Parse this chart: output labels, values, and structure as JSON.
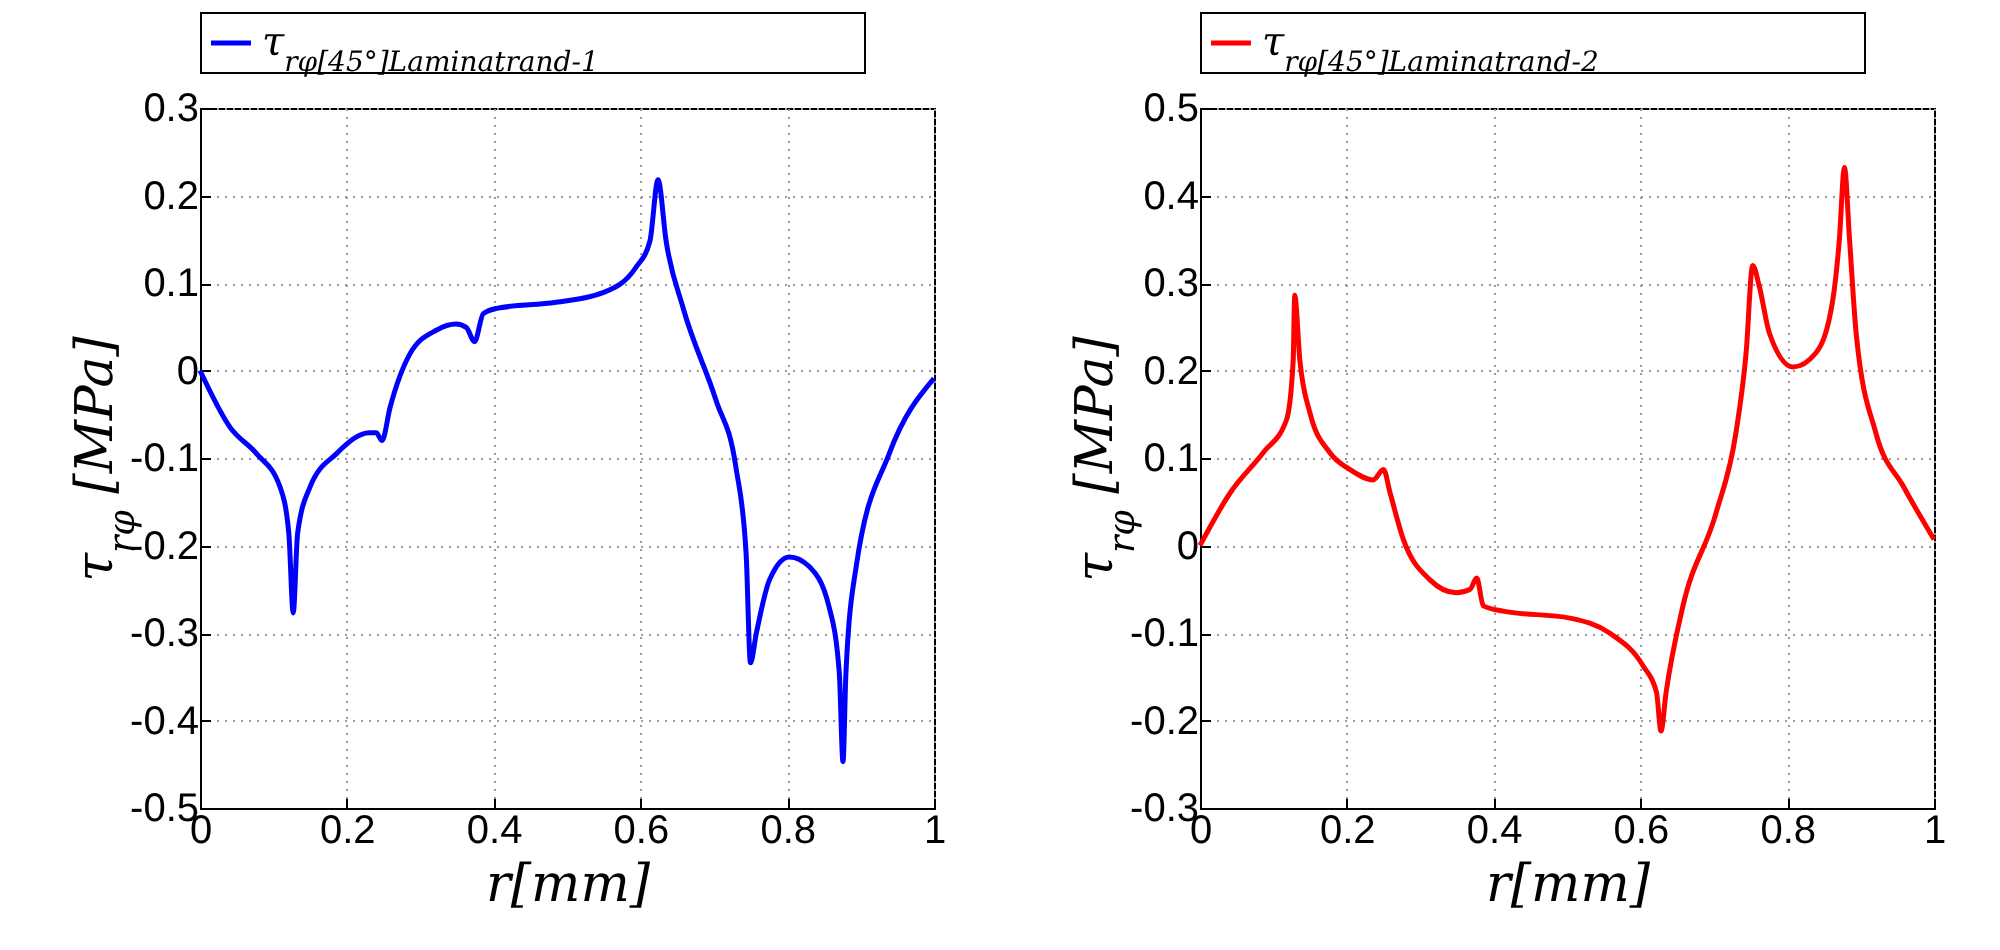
{
  "chart_data": [
    {
      "type": "line",
      "xlabel": "r[mm]",
      "ylabel": "τ$_{rφ}$ [MPa]",
      "xlim": [
        0,
        1
      ],
      "ylim": [
        -0.5,
        0.3
      ],
      "xticks": [
        0,
        0.2,
        0.4,
        0.6,
        0.8,
        1
      ],
      "yticks": [
        -0.5,
        -0.4,
        -0.3,
        -0.2,
        -0.1,
        0,
        0.1,
        0.2,
        0.3
      ],
      "grid": true,
      "legend": "top",
      "series": [
        {
          "name": "τ$_{rφ[45°]Laminatrand-1}$",
          "color": "#0000ff",
          "x": [
            0,
            0.041,
            0.077,
            0.109,
            0.121,
            0.127,
            0.133,
            0.15,
            0.186,
            0.231,
            0.24,
            0.248,
            0.259,
            0.286,
            0.322,
            0.349,
            0.363,
            0.374,
            0.386,
            0.404,
            0.485,
            0.549,
            0.594,
            0.613,
            0.624,
            0.635,
            0.658,
            0.703,
            0.73,
            0.744,
            0.75,
            0.758,
            0.776,
            0.803,
            0.83,
            0.857,
            0.871,
            0.876,
            0.88,
            0.894,
            0.939,
            1.0
          ],
          "values": [
            0,
            -0.065,
            -0.095,
            -0.133,
            -0.186,
            -0.277,
            -0.186,
            -0.133,
            -0.095,
            -0.071,
            -0.071,
            -0.08,
            -0.042,
            0.019,
            0.046,
            0.053,
            0.049,
            0.033,
            0.065,
            0.071,
            0.078,
            0.089,
            0.118,
            0.148,
            0.218,
            0.148,
            0.072,
            -0.034,
            -0.11,
            -0.209,
            -0.334,
            -0.3,
            -0.239,
            -0.213,
            -0.224,
            -0.27,
            -0.346,
            -0.447,
            -0.346,
            -0.224,
            -0.095,
            -0.009
          ]
        }
      ]
    },
    {
      "type": "line",
      "xlabel": "r[mm]",
      "ylabel": "τ$_{rφ}$ [MPa]",
      "xlim": [
        0,
        1
      ],
      "ylim": [
        -0.3,
        0.5
      ],
      "xticks": [
        0,
        0.2,
        0.4,
        0.6,
        0.8,
        1
      ],
      "yticks": [
        -0.3,
        -0.2,
        -0.1,
        0,
        0.1,
        0.2,
        0.3,
        0.4,
        0.5
      ],
      "grid": true,
      "legend": "top",
      "series": [
        {
          "name": "τ$_{rφ[45°]Laminatrand-2}$",
          "color": "#ff0000",
          "x": [
            0,
            0.041,
            0.086,
            0.118,
            0.127,
            0.129,
            0.136,
            0.15,
            0.177,
            0.204,
            0.236,
            0.25,
            0.259,
            0.277,
            0.313,
            0.349,
            0.368,
            0.377,
            0.386,
            0.413,
            0.504,
            0.558,
            0.604,
            0.622,
            0.628,
            0.635,
            0.658,
            0.703,
            0.73,
            0.744,
            0.753,
            0.762,
            0.776,
            0.808,
            0.839,
            0.862,
            0.871,
            0.878,
            0.885,
            0.894,
            0.921,
            0.958,
            1.0
          ],
          "values": [
            0,
            0.06,
            0.106,
            0.144,
            0.212,
            0.286,
            0.212,
            0.151,
            0.106,
            0.087,
            0.075,
            0.087,
            0.06,
            0.007,
            -0.039,
            -0.054,
            -0.05,
            -0.037,
            -0.069,
            -0.075,
            -0.083,
            -0.1,
            -0.138,
            -0.168,
            -0.212,
            -0.168,
            -0.069,
            0.037,
            0.128,
            0.22,
            0.32,
            0.296,
            0.242,
            0.204,
            0.22,
            0.28,
            0.349,
            0.432,
            0.349,
            0.242,
            0.128,
            0.068,
            0.007
          ]
        }
      ]
    }
  ]
}
